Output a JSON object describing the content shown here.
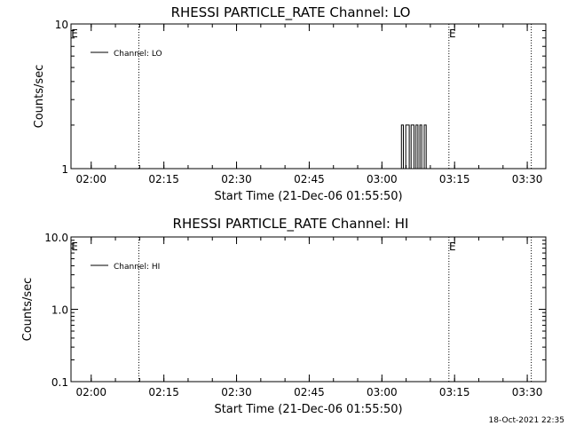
{
  "chart_data": [
    {
      "type": "line",
      "title": "RHESSI PARTICLE_RATE Channel: LO",
      "xlabel": "Start Time (21-Dec-06 01:55:50)",
      "ylabel": "Counts/sec",
      "y_scale": "log",
      "ylim": [
        1,
        10
      ],
      "xlim_minutes": [
        0,
        98
      ],
      "x_ticks": [
        "02:00",
        "02:15",
        "02:30",
        "02:45",
        "03:00",
        "03:15",
        "03:30"
      ],
      "y_ticks": [
        "1",
        "10"
      ],
      "legend": "Channel: LO",
      "event_labels": [
        "E",
        "E"
      ],
      "markers": [
        14,
        78,
        95
      ],
      "series": [
        {
          "name": "Channel: LO",
          "x": [
            0,
            68.2,
            68.2,
            68.6,
            68.6,
            69.1,
            69.1,
            69.8,
            69.8,
            70.2,
            70.2,
            70.8,
            70.8,
            71.2,
            71.2,
            71.6,
            71.6,
            72.0,
            72.0,
            72.4,
            72.4,
            72.9,
            72.9,
            73.3,
            73.3,
            98
          ],
          "y": [
            1,
            1,
            2,
            2,
            1,
            1,
            2,
            2,
            1,
            1,
            2,
            2,
            1,
            1,
            2,
            2,
            1,
            1,
            2,
            2,
            1,
            1,
            2,
            2,
            1,
            1
          ]
        }
      ]
    },
    {
      "type": "line",
      "title": "RHESSI PARTICLE_RATE Channel: HI",
      "xlabel": "Start Time (21-Dec-06 01:55:50)",
      "ylabel": "Counts/sec",
      "y_scale": "log",
      "ylim": [
        0.1,
        10
      ],
      "xlim_minutes": [
        0,
        98
      ],
      "x_ticks": [
        "02:00",
        "02:15",
        "02:30",
        "02:45",
        "03:00",
        "03:15",
        "03:30"
      ],
      "y_ticks": [
        "0.1",
        "1.0",
        "10.0"
      ],
      "legend": "Channel: HI",
      "event_labels": [
        "E",
        "E"
      ],
      "markers": [
        14,
        78,
        95
      ],
      "series": [
        {
          "name": "Channel: HI",
          "x": [],
          "y": []
        }
      ]
    }
  ],
  "footer": {
    "timestamp": "18-Oct-2021 22:35"
  }
}
